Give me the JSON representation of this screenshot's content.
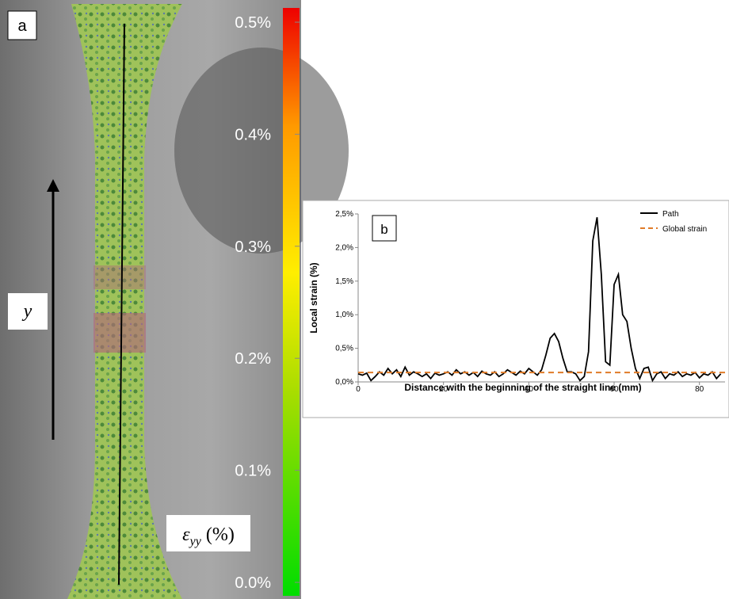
{
  "panel_a": {
    "label": "a",
    "axis_label": "y",
    "colorbar_label": {
      "symbol": "ε",
      "subscript": "yy",
      "unit": " (%)"
    },
    "clim": [
      0,
      0.5
    ],
    "colorbar_ticks": [
      {
        "value": 0.5,
        "label": "0.5%"
      },
      {
        "value": 0.4,
        "label": "0.4%"
      },
      {
        "value": 0.3,
        "label": "0.3%"
      },
      {
        "value": 0.2,
        "label": "0.2%"
      },
      {
        "value": 0.1,
        "label": "0.1%"
      },
      {
        "value": 0,
        "label": "0.0%"
      }
    ]
  },
  "chart_data": {
    "type": "line",
    "panel_label": "b",
    "x_label": "Distance with the beginning of the straight line (mm)",
    "y_label": "Local strain (%)",
    "xlim": [
      0,
      86
    ],
    "ylim": [
      0,
      2.5
    ],
    "xticks": [
      0,
      20,
      40,
      60,
      80
    ],
    "yticks": [
      {
        "value": 0,
        "label": "0,0%"
      },
      {
        "value": 0.5,
        "label": "0,5%"
      },
      {
        "value": 1,
        "label": "1,0%"
      },
      {
        "value": 1.5,
        "label": "1,5%"
      },
      {
        "value": 2,
        "label": "2,0%"
      },
      {
        "value": 2.5,
        "label": "2,5%"
      }
    ],
    "legend": "top-right",
    "x": [
      0,
      1,
      2,
      3,
      4,
      5,
      6,
      7,
      8,
      9,
      10,
      11,
      12,
      13,
      14,
      15,
      16,
      17,
      18,
      19,
      20,
      21,
      22,
      23,
      24,
      25,
      26,
      27,
      28,
      29,
      30,
      31,
      32,
      33,
      34,
      35,
      36,
      37,
      38,
      39,
      40,
      41,
      42,
      43,
      44,
      45,
      46,
      47,
      48,
      49,
      50,
      51,
      52,
      53,
      54,
      55,
      56,
      57,
      58,
      59,
      60,
      61,
      62,
      63,
      64,
      65,
      66,
      67,
      68,
      69,
      70,
      71,
      72,
      73,
      74,
      75,
      76,
      77,
      78,
      79,
      80,
      81,
      82,
      83,
      84,
      85
    ],
    "series": [
      {
        "name": "Path",
        "color": "#000000",
        "dashed": false,
        "values": [
          0.12,
          0.1,
          0.13,
          0.02,
          0.08,
          0.15,
          0.1,
          0.2,
          0.12,
          0.18,
          0.08,
          0.22,
          0.1,
          0.15,
          0.12,
          0.08,
          0.12,
          0.05,
          0.13,
          0.1,
          0.12,
          0.15,
          0.1,
          0.18,
          0.12,
          0.15,
          0.1,
          0.14,
          0.08,
          0.16,
          0.12,
          0.1,
          0.15,
          0.08,
          0.12,
          0.18,
          0.14,
          0.1,
          0.16,
          0.12,
          0.2,
          0.15,
          0.1,
          0.18,
          0.4,
          0.65,
          0.72,
          0.6,
          0.35,
          0.15,
          0.15,
          0.12,
          0.02,
          0.08,
          0.45,
          2.1,
          2.45,
          1.6,
          0.3,
          0.25,
          1.45,
          1.6,
          1.0,
          0.9,
          0.5,
          0.2,
          0.05,
          0.2,
          0.22,
          0.02,
          0.12,
          0.15,
          0.05,
          0.12,
          0.1,
          0.15,
          0.08,
          0.12,
          0.1,
          0.14,
          0.06,
          0.12,
          0.1,
          0.15,
          0.05,
          0.12
        ]
      },
      {
        "name": "Global strain",
        "color": "#e07b28",
        "dashed": true,
        "x": [
          0,
          86
        ],
        "values": [
          0.14,
          0.14
        ]
      }
    ]
  }
}
